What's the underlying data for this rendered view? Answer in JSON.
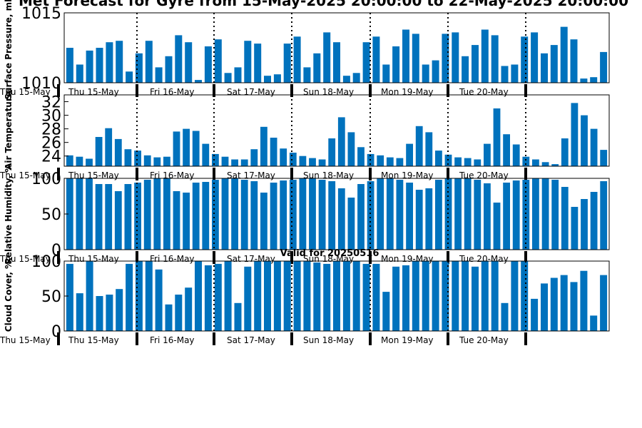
{
  "title": "Met Forecast for Gyre from 15-May-2025 20:00:00 to 22-May-2025 20:00:00",
  "colors": {
    "bar": "#0072bd",
    "axis": "#000000",
    "background": "#ffffff"
  },
  "chart_data": [
    {
      "type": "bar",
      "ylabel": "Surface Pressure, mb",
      "ylim": [
        1010,
        1015
      ],
      "yticks": [
        1010,
        1015
      ],
      "day_labels": [
        "Thu 15-May",
        "Thu 15-May",
        "Fri 16-May",
        "Sat 17-May",
        "Sun 18-May",
        "Mon 19-May",
        "Tue 20-May"
      ],
      "values": [
        1012.5,
        1011.3,
        1012.3,
        1012.5,
        1012.9,
        1013.0,
        1010.8,
        1012.1,
        1013.0,
        1011.1,
        1011.9,
        1013.4,
        1012.9,
        1010.2,
        1012.6,
        1013.1,
        1010.7,
        1011.1,
        1013.0,
        1012.8,
        1010.5,
        1010.6,
        1012.8,
        1013.3,
        1011.1,
        1012.1,
        1013.6,
        1012.9,
        1010.5,
        1010.7,
        1012.9,
        1013.3,
        1011.3,
        1012.6,
        1013.8,
        1013.5,
        1011.3,
        1011.6,
        1013.5,
        1013.6,
        1011.9,
        1012.7,
        1013.8,
        1013.4,
        1011.2,
        1011.3,
        1013.3,
        1013.6,
        1012.1,
        1012.7,
        1014.0,
        1013.1,
        1010.3,
        1010.4,
        1012.2
      ]
    },
    {
      "type": "bar",
      "ylabel": "Air Temperature",
      "ylim": [
        22.5,
        33
      ],
      "yticks": [
        24,
        26,
        28,
        30,
        32
      ],
      "day_labels": [
        "Thu 15-May",
        "Thu 15-May",
        "Fri 16-May",
        "Sat 17-May",
        "Sun 18-May",
        "Mon 19-May",
        "Tue 20-May"
      ],
      "values": [
        24.1,
        23.9,
        23.6,
        26.8,
        28.1,
        26.5,
        25.0,
        24.8,
        24.1,
        23.8,
        23.9,
        27.6,
        28.0,
        27.7,
        25.8,
        24.3,
        23.9,
        23.5,
        23.5,
        25.0,
        28.3,
        26.7,
        25.1,
        24.5,
        24.0,
        23.7,
        23.5,
        26.6,
        29.7,
        27.5,
        25.3,
        24.3,
        24.1,
        23.8,
        23.7,
        25.8,
        28.4,
        27.5,
        24.8,
        24.2,
        23.8,
        23.7,
        23.5,
        25.8,
        31.0,
        27.2,
        25.7,
        23.9,
        23.5,
        23.1,
        22.8,
        26.6,
        31.8,
        30.0,
        28.0,
        24.9
      ]
    },
    {
      "type": "bar",
      "ylabel": "Relative Humidity, %",
      "ylim": [
        0,
        100
      ],
      "yticks": [
        0,
        50,
        100
      ],
      "day_labels": [
        "Thu 15-May",
        "Thu 15-May",
        "Fri 16-May",
        "Sat 17-May",
        "Sun 18-May",
        "Mon 19-May",
        "Tue 20-May"
      ],
      "values": [
        100,
        100,
        100,
        92,
        92,
        82,
        92,
        94,
        98,
        100,
        100,
        82,
        80,
        94,
        95,
        98,
        100,
        100,
        98,
        96,
        80,
        94,
        97,
        98,
        100,
        100,
        98,
        96,
        86,
        73,
        92,
        96,
        100,
        100,
        98,
        94,
        84,
        86,
        98,
        100,
        100,
        100,
        98,
        93,
        66,
        94,
        97,
        98,
        100,
        100,
        98,
        88,
        60,
        71,
        81,
        96
      ]
    },
    {
      "type": "bar",
      "title": "Valid for 20250516",
      "ylabel": "Cloud Cover, %",
      "ylim": [
        0,
        100
      ],
      "yticks": [
        0,
        50,
        100
      ],
      "day_labels": [
        "Thu 15-May",
        "Thu 15-May",
        "Fri 16-May",
        "Sat 17-May",
        "Sun 18-May",
        "Mon 19-May",
        "Tue 20-May"
      ],
      "values": [
        96,
        54,
        100,
        50,
        52,
        60,
        96,
        100,
        100,
        88,
        38,
        52,
        62,
        100,
        94,
        96,
        100,
        40,
        92,
        100,
        100,
        100,
        100,
        100,
        100,
        98,
        96,
        100,
        100,
        100,
        96,
        96,
        56,
        92,
        94,
        100,
        100,
        100,
        100,
        100,
        100,
        92,
        100,
        100,
        40,
        100,
        100,
        46,
        68,
        76,
        80,
        70,
        86,
        22,
        80
      ]
    }
  ]
}
